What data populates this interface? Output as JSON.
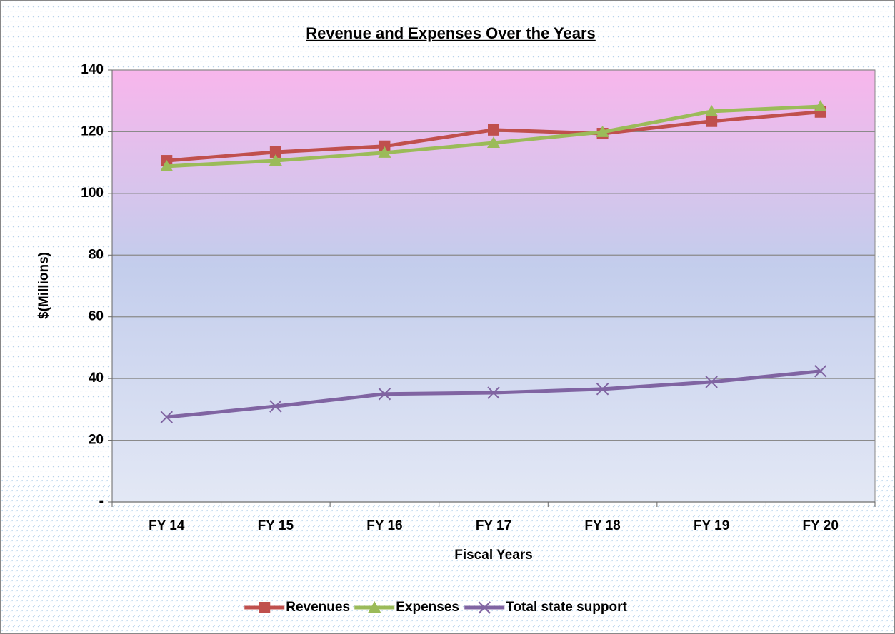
{
  "chart_data": {
    "type": "line",
    "title": "Revenue and Expenses Over the Years",
    "x_label": "Fiscal Years",
    "y_label": "$(Millions)",
    "categories": [
      "FY 14",
      "FY 15",
      "FY 16",
      "FY 17",
      "FY 18",
      "FY 19",
      "FY 20"
    ],
    "series": [
      {
        "name": "Revenues",
        "color": "#c0504d",
        "marker": "square",
        "values": [
          110.6,
          113.4,
          115.3,
          120.6,
          119.4,
          123.4,
          126.4
        ]
      },
      {
        "name": "Expenses",
        "color": "#9bbb59",
        "marker": "triangle",
        "values": [
          108.8,
          110.6,
          113.2,
          116.4,
          119.9,
          126.6,
          128.2
        ]
      },
      {
        "name": "Total state support",
        "color": "#8064a2",
        "marker": "x",
        "values": [
          27.5,
          31,
          35,
          35.4,
          36.6,
          38.9,
          42.4
        ]
      }
    ],
    "ylim": [
      0,
      140
    ],
    "yticks": [
      {
        "value": 0,
        "label": "-"
      },
      20,
      40,
      60,
      80,
      100,
      120,
      140
    ],
    "grid": true,
    "legend": "bottom"
  }
}
